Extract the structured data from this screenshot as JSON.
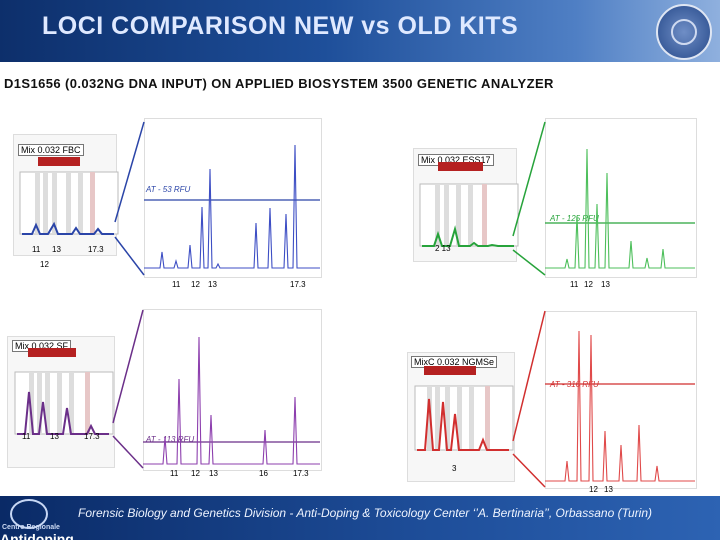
{
  "header": {
    "title": "LOCI COMPARISON NEW vs OLD KITS"
  },
  "subtitle": "D1S1656 (0.032NG DNA INPUT) ON APPLIED BIOSYSTEM 3500 GENETIC ANALYZER",
  "footer": {
    "text": "Forensic Biology and Genetics Division - Anti-Doping & Toxicology Center ‘’A. Bertinaria’’, Orbassano (Turin)",
    "logo_small": "Centro Regionale",
    "logo_large": "Antidoping"
  },
  "panels": {
    "tl": {
      "name": "Mix 0.032 FBC",
      "thr": "AT - 53 RFU",
      "l1": "11",
      "l2": "13",
      "l3": "17.3",
      "l4": "12",
      "tick1": "135",
      "tick2": "195",
      "yt1": "480",
      "yt2": "360",
      "yt3": "240",
      "yt4": "120"
    },
    "tr": {
      "name": "Mix 0.032 ESS17",
      "thr": "AT - 125 RFU",
      "l1": "11",
      "l2": "12",
      "l3": "13",
      "l4": "2 13",
      "tick1": "135",
      "tick2": "165",
      "yt1": "480",
      "yt2": "360",
      "yt3": "240",
      "yt4": "120"
    },
    "bl": {
      "name": "Mix 0.032 SF",
      "thr": "AT - 113 RFU",
      "l1": "11",
      "l2": "12",
      "l3": "13",
      "l4": "16",
      "l5": "17.3",
      "tick1": "190",
      "tick2": "205",
      "yt1": "720",
      "yt2": "480",
      "yt3": "240"
    },
    "br": {
      "name": "MixC 0.032 NGMSe",
      "thr": "AT - 316 RFU",
      "l1": "12",
      "l2": "13",
      "l3": "3",
      "tick1": "195",
      "yt1": "400",
      "yt2": "300",
      "yt3": "200",
      "yt4": "100"
    }
  },
  "colors": {
    "blue": "#2b45a8",
    "green": "#27a33b",
    "purple": "#6b2f89",
    "red": "#d12f2f"
  }
}
